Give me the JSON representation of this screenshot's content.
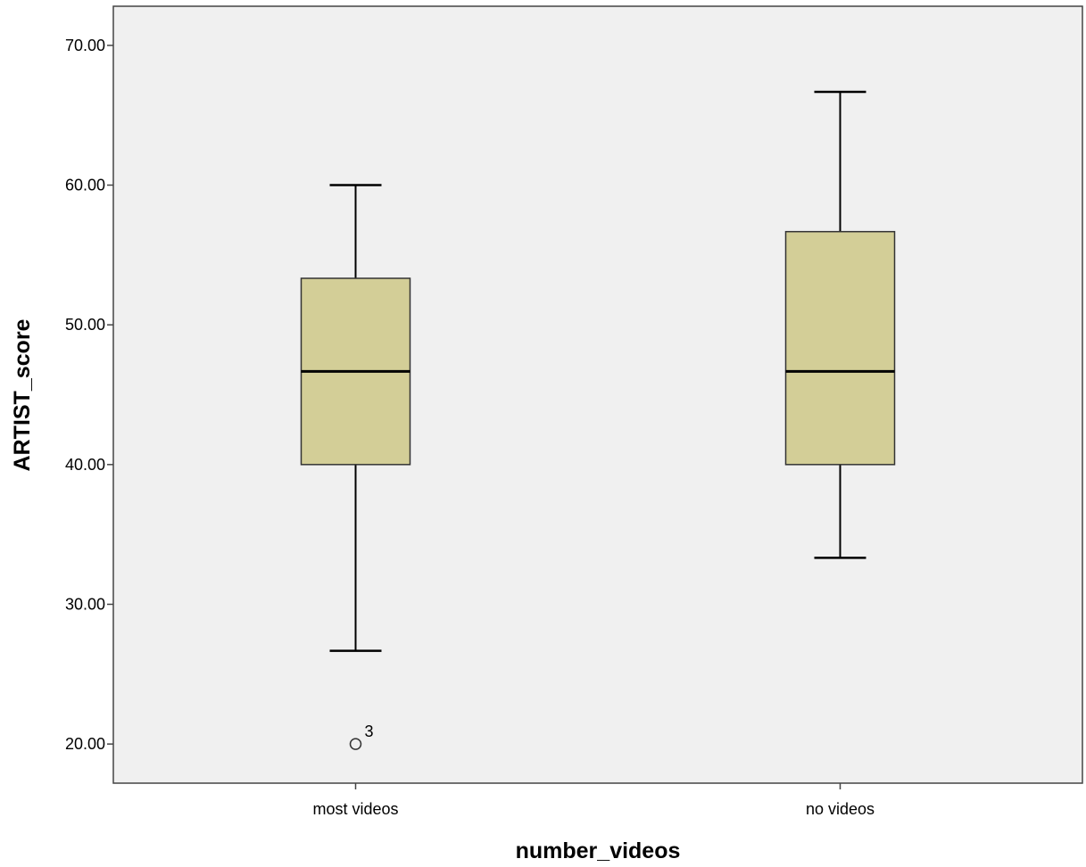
{
  "chart_data": {
    "type": "boxplot",
    "title": "",
    "xlabel": "number_videos",
    "ylabel": "ARTIST_score",
    "ylim": [
      17.2,
      72.8
    ],
    "yticks": [
      "20.00",
      "30.00",
      "40.00",
      "50.00",
      "60.00",
      "70.00"
    ],
    "ytick_values": [
      20,
      30,
      40,
      50,
      60,
      70
    ],
    "grid": false,
    "categories": [
      "most videos",
      "no videos"
    ],
    "boxes": [
      {
        "category": "most videos",
        "whisker_low": 26.67,
        "q1": 40.0,
        "median": 46.67,
        "q3": 53.33,
        "whisker_high": 60.0,
        "outliers": [
          {
            "value": 20.0,
            "label": "3"
          }
        ]
      },
      {
        "category": "no videos",
        "whisker_low": 33.33,
        "q1": 40.0,
        "median": 46.67,
        "q3": 56.67,
        "whisker_high": 66.67,
        "outliers": []
      }
    ],
    "colors": {
      "plot_background": "#f0f0f0",
      "box_fill": "#d3ce97",
      "line": "#000000"
    }
  }
}
